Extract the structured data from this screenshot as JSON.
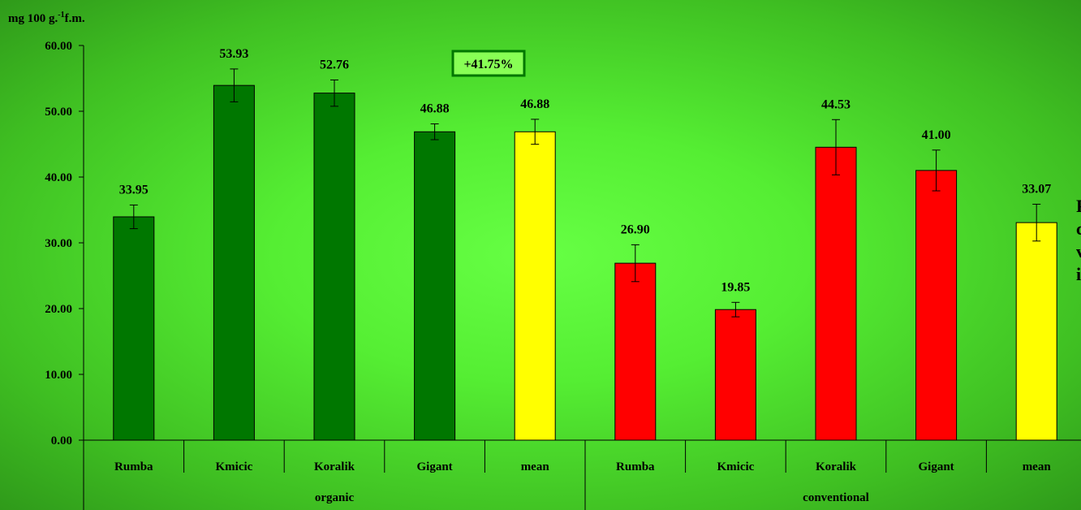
{
  "chart_data": {
    "type": "bar",
    "ylabel": "mg 100 g.-1 f.m.",
    "ylabel_parts": {
      "base": "mg 100 g.",
      "sup": "-1",
      "tail": "f.m."
    },
    "ylim": [
      0,
      60
    ],
    "yticks": [
      "0.00",
      "10.00",
      "20.00",
      "30.00",
      "40.00",
      "50.00",
      "60.00"
    ],
    "groups": [
      {
        "name": "organic",
        "categories": [
          "Rumba",
          "Kmicic",
          "Koralik",
          "Gigant",
          "mean"
        ],
        "values": [
          33.95,
          53.93,
          52.76,
          46.88,
          46.88
        ],
        "value_labels": [
          "33.95",
          "53.93",
          "52.76",
          "46.88",
          "46.88"
        ],
        "errors": [
          1.8,
          2.5,
          2.0,
          1.2,
          1.9
        ],
        "colors": [
          "#007700",
          "#007700",
          "#007700",
          "#007700",
          "#ffff00"
        ]
      },
      {
        "name": "conventional",
        "categories": [
          "Rumba",
          "Kmicic",
          "Koralik",
          "Gigant",
          "mean"
        ],
        "values": [
          26.9,
          19.85,
          44.53,
          41.0,
          33.07
        ],
        "value_labels": [
          "26.90",
          "19.85",
          "44.53",
          "41.00",
          "33.07"
        ],
        "errors": [
          2.8,
          1.1,
          4.2,
          3.1,
          2.8
        ],
        "colors": [
          "#ff0000",
          "#ff0000",
          "#ff0000",
          "#ff0000",
          "#ffff00"
        ]
      }
    ],
    "annotation": {
      "text": "+41.75%",
      "border_color": "#007700",
      "text_color": "#007700",
      "fill": "#88ff55"
    },
    "grid": false
  },
  "side_note_lines": [
    "P",
    "c",
    "v",
    "i"
  ]
}
